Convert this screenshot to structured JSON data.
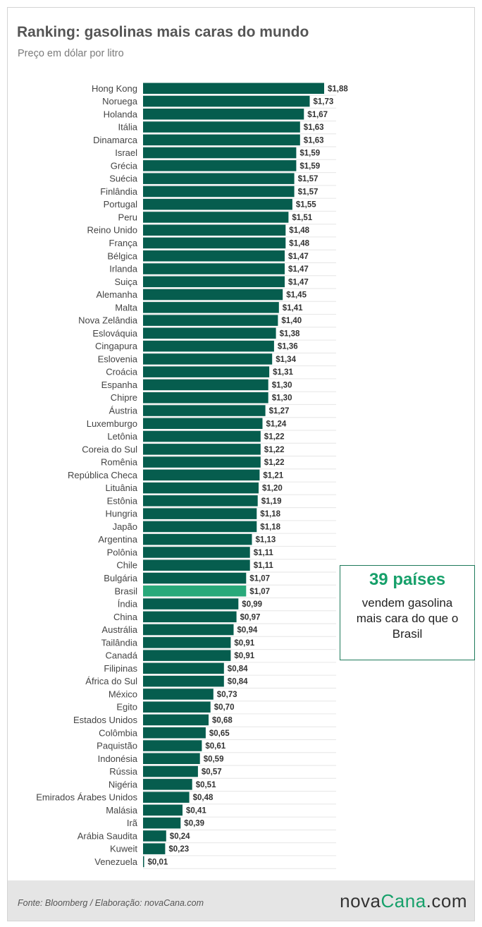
{
  "header": {
    "title": "Ranking: gasolinas mais caras do mundo",
    "subtitle": "Preço em dólar por litro"
  },
  "callout": {
    "headline": "39 países",
    "text": "vendem gasolina mais cara do que o Brasil"
  },
  "footer": {
    "source": "Fonte: Bloomberg / Elaboração: novaCana.com",
    "logo_part1": "nova",
    "logo_part2": "Cana",
    "logo_part3": ".com"
  },
  "colors": {
    "bar": "#065d4e",
    "highlight": "#29a97a",
    "accent": "#16a06a",
    "gridline": "#e6e6e6"
  },
  "chart_data": {
    "type": "bar",
    "orientation": "horizontal",
    "value_prefix": "$",
    "highlight_category": "Brasil",
    "xlim": [
      0,
      1.88
    ],
    "grid": true,
    "categories": [
      "Hong Kong",
      "Noruega",
      "Holanda",
      "Itália",
      "Dinamarca",
      "Israel",
      "Grécia",
      "Suécia",
      "Finlândia",
      "Portugal",
      "Peru",
      "Reino Unido",
      "França",
      "Bélgica",
      "Irlanda",
      "Suiça",
      "Alemanha",
      "Malta",
      "Nova Zelândia",
      "Eslováquia",
      "Cingapura",
      "Eslovenia",
      "Croácia",
      "Espanha",
      "Chipre",
      "Áustria",
      "Luxemburgo",
      "Letônia",
      "Coreia do Sul",
      "Romênia",
      "República Checa",
      "Lituânia",
      "Estônia",
      "Hungria",
      "Japão",
      "Argentina",
      "Polônia",
      "Chile",
      "Bulgária",
      "Brasil",
      "Índia",
      "China",
      "Austrália",
      "Tailândia",
      "Canadá",
      "Filipinas",
      "África do Sul",
      "México",
      "Egito",
      "Estados Unidos",
      "Colômbia",
      "Paquistão",
      "Indonésia",
      "Rússia",
      "Nigéria",
      "Emirados Árabes Unidos",
      "Malásia",
      "Irã",
      "Arábia Saudita",
      "Kuweit",
      "Venezuela"
    ],
    "values": [
      1.88,
      1.73,
      1.67,
      1.63,
      1.63,
      1.59,
      1.59,
      1.57,
      1.57,
      1.55,
      1.51,
      1.48,
      1.48,
      1.47,
      1.47,
      1.47,
      1.45,
      1.41,
      1.4,
      1.38,
      1.36,
      1.34,
      1.31,
      1.3,
      1.3,
      1.27,
      1.24,
      1.22,
      1.22,
      1.22,
      1.21,
      1.2,
      1.19,
      1.18,
      1.18,
      1.13,
      1.11,
      1.11,
      1.07,
      1.07,
      0.99,
      0.97,
      0.94,
      0.91,
      0.91,
      0.84,
      0.84,
      0.73,
      0.7,
      0.68,
      0.65,
      0.61,
      0.59,
      0.57,
      0.51,
      0.48,
      0.41,
      0.39,
      0.24,
      0.23,
      0.01
    ],
    "labels": [
      "$1,88",
      "$1,73",
      "$1,67",
      "$1,63",
      "$1,63",
      "$1,59",
      "$1,59",
      "$1,57",
      "$1,57",
      "$1,55",
      "$1,51",
      "$1,48",
      "$1,48",
      "$1,47",
      "$1,47",
      "$1,47",
      "$1,45",
      "$1,41",
      "$1,40",
      "$1,38",
      "$1,36",
      "$1,34",
      "$1,31",
      "$1,30",
      "$1,30",
      "$1,27",
      "$1,24",
      "$1,22",
      "$1,22",
      "$1,22",
      "$1,21",
      "$1,20",
      "$1,19",
      "$1,18",
      "$1,18",
      "$1,13",
      "$1,11",
      "$1,11",
      "$1,07",
      "$1,07",
      "$0,99",
      "$0,97",
      "$0,94",
      "$0,91",
      "$0,91",
      "$0,84",
      "$0,84",
      "$0,73",
      "$0,70",
      "$0,68",
      "$0,65",
      "$0,61",
      "$0,59",
      "$0,57",
      "$0,51",
      "$0,48",
      "$0,41",
      "$0,39",
      "$0,24",
      "$0,23",
      "$0,01"
    ]
  }
}
